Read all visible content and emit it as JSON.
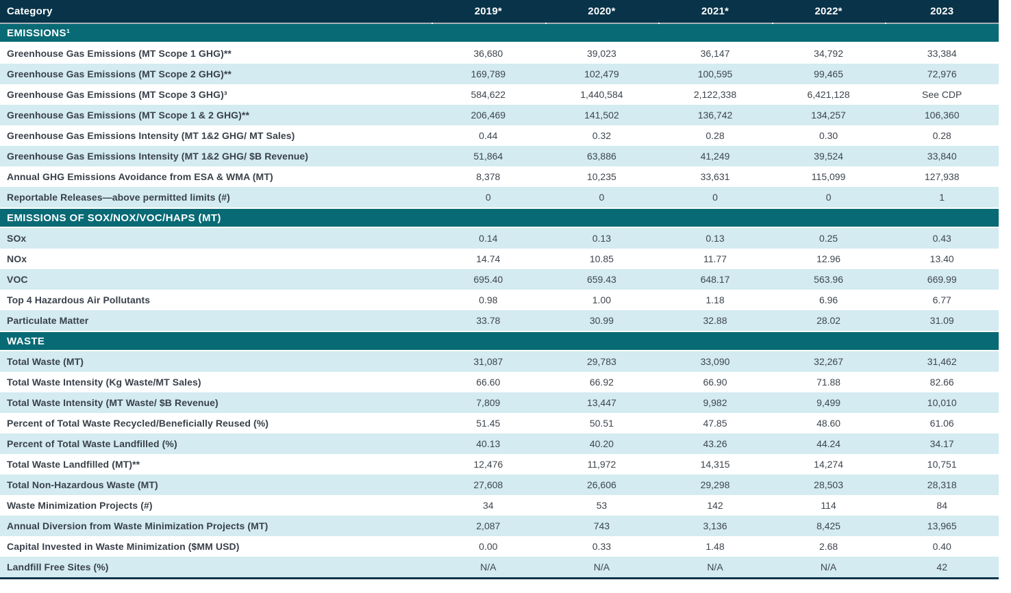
{
  "colors": {
    "header_bg": "#093349",
    "section_bg": "#086a75",
    "row_alt_bg": "#d3ebf1",
    "separator_gray": "#a9b2b8",
    "bottom_rule": "#093349",
    "header_text": "#ffffff",
    "body_text": "#3e454d"
  },
  "table": {
    "header": {
      "category_label": "Category",
      "years": [
        "2019*",
        "2020*",
        "2021*",
        "2022*",
        "2023"
      ]
    },
    "sections": [
      {
        "title": "EMISSIONS¹",
        "rows": [
          {
            "label": "Greenhouse Gas Emissions (MT Scope 1 GHG)**",
            "values": [
              "36,680",
              "39,023",
              "36,147",
              "34,792",
              "33,384"
            ]
          },
          {
            "label": "Greenhouse Gas Emissions (MT Scope 2 GHG)**",
            "values": [
              "169,789",
              "102,479",
              "100,595",
              "99,465",
              "72,976"
            ]
          },
          {
            "label": "Greenhouse Gas Emissions (MT Scope 3 GHG)³",
            "values": [
              "584,622",
              "1,440,584",
              "2,122,338",
              "6,421,128",
              "See CDP"
            ]
          },
          {
            "label": "Greenhouse Gas Emissions (MT Scope 1 & 2 GHG)**",
            "values": [
              "206,469",
              "141,502",
              "136,742",
              "134,257",
              "106,360"
            ]
          },
          {
            "label": "Greenhouse Gas Emissions Intensity (MT 1&2 GHG/ MT Sales)",
            "values": [
              "0.44",
              "0.32",
              "0.28",
              "0.30",
              "0.28"
            ]
          },
          {
            "label": "Greenhouse Gas Emissions Intensity (MT 1&2 GHG/ $B Revenue)",
            "values": [
              "51,864",
              "63,886",
              "41,249",
              "39,524",
              "33,840"
            ]
          },
          {
            "label": "Annual GHG Emissions Avoidance from ESA & WMA (MT)",
            "values": [
              "8,378",
              "10,235",
              "33,631",
              "115,099",
              "127,938"
            ]
          },
          {
            "label": "Reportable Releases—above permitted limits (#)",
            "values": [
              "0",
              "0",
              "0",
              "0",
              "1"
            ]
          }
        ]
      },
      {
        "title": "EMISSIONS OF SOX/NOX/VOC/HAPS (MT)",
        "rows": [
          {
            "label": "SOx",
            "values": [
              "0.14",
              "0.13",
              "0.13",
              "0.25",
              "0.43"
            ]
          },
          {
            "label": "NOx",
            "values": [
              "14.74",
              "10.85",
              "11.77",
              "12.96",
              "13.40"
            ]
          },
          {
            "label": "VOC",
            "values": [
              "695.40",
              "659.43",
              "648.17",
              "563.96",
              "669.99"
            ]
          },
          {
            "label": "Top 4 Hazardous Air Pollutants",
            "values": [
              "0.98",
              "1.00",
              "1.18",
              "6.96",
              "6.77"
            ]
          },
          {
            "label": "Particulate Matter",
            "values": [
              "33.78",
              "30.99",
              "32.88",
              "28.02",
              "31.09"
            ]
          }
        ]
      },
      {
        "title": "WASTE",
        "rows": [
          {
            "label": "Total Waste (MT)",
            "values": [
              "31,087",
              "29,783",
              "33,090",
              "32,267",
              "31,462"
            ]
          },
          {
            "label": "Total Waste Intensity (Kg Waste/MT Sales)",
            "values": [
              "66.60",
              "66.92",
              "66.90",
              "71.88",
              "82.66"
            ]
          },
          {
            "label": "Total Waste Intensity (MT Waste/ $B Revenue)",
            "values": [
              "7,809",
              "13,447",
              "9,982",
              "9,499",
              "10,010"
            ]
          },
          {
            "label": "Percent of Total Waste Recycled/Beneficially Reused (%)",
            "values": [
              "51.45",
              "50.51",
              "47.85",
              "48.60",
              "61.06"
            ]
          },
          {
            "label": "Percent of Total Waste Landfilled (%)",
            "values": [
              "40.13",
              "40.20",
              "43.26",
              "44.24",
              "34.17"
            ]
          },
          {
            "label": "Total Waste Landfilled (MT)**",
            "values": [
              "12,476",
              "11,972",
              "14,315",
              "14,274",
              "10,751"
            ]
          },
          {
            "label": "Total Non-Hazardous Waste (MT)",
            "values": [
              "27,608",
              "26,606",
              "29,298",
              "28,503",
              "28,318"
            ]
          },
          {
            "label": "Waste Minimization Projects (#)",
            "values": [
              "34",
              "53",
              "142",
              "114",
              "84"
            ]
          },
          {
            "label": "Annual Diversion from Waste Minimization Projects (MT)",
            "values": [
              "2,087",
              "743",
              "3,136",
              "8,425",
              "13,965"
            ]
          },
          {
            "label": "Capital Invested in Waste Minimization ($MM USD)",
            "values": [
              "0.00",
              "0.33",
              "1.48",
              "2.68",
              "0.40"
            ]
          },
          {
            "label": "Landfill Free Sites (%)",
            "values": [
              "N/A",
              "N/A",
              "N/A",
              "N/A",
              "42"
            ]
          }
        ]
      }
    ]
  }
}
